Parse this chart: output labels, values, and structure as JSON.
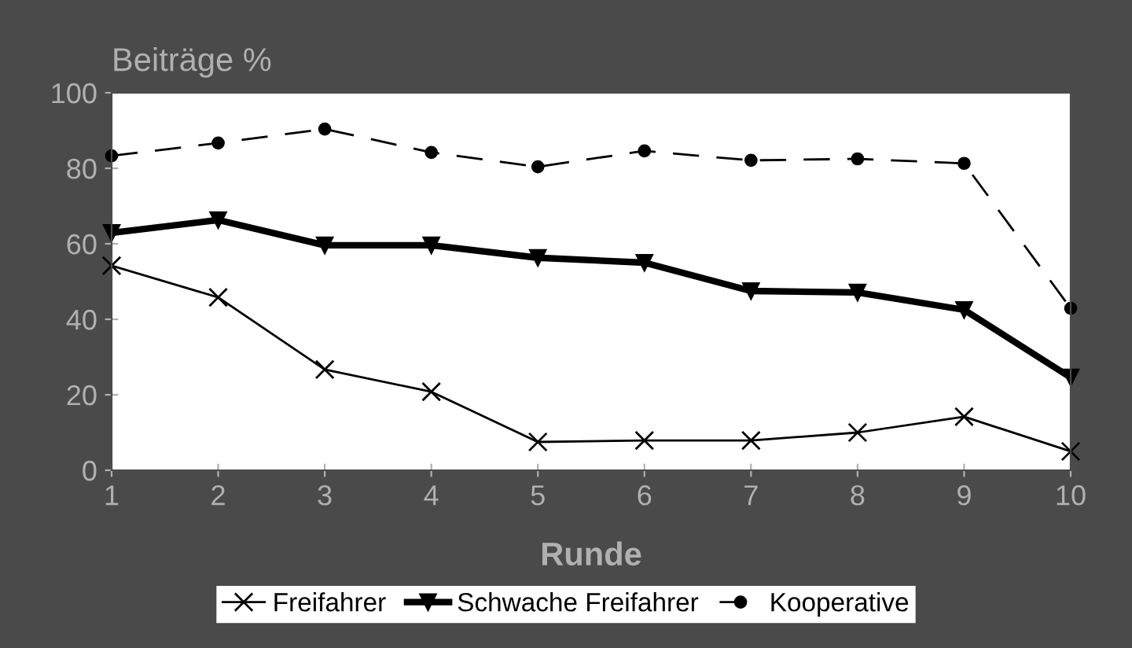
{
  "chart_data": {
    "type": "line",
    "ylabel": "Beiträge %",
    "xlabel": "Runde",
    "x": [
      1,
      2,
      3,
      4,
      5,
      6,
      7,
      8,
      9,
      10
    ],
    "series": [
      {
        "name": "Freifahrer",
        "color": "#000000",
        "marker": "cross",
        "line_style": "solid",
        "values": [
          54.2,
          45.8,
          26.7,
          20.8,
          7.5,
          7.9,
          7.9,
          10,
          14.2,
          5
        ]
      },
      {
        "name": "Schwache Freifahrer",
        "color": "#000000",
        "marker": "triangle",
        "line_style": "solid",
        "values": [
          62.9,
          66.3,
          59.6,
          59.6,
          56.3,
          55,
          47.5,
          47.1,
          42.5,
          24.6
        ]
      },
      {
        "name": "Kooperative",
        "color": "#000000",
        "marker": "circle",
        "line_style": "dashed",
        "values": [
          83.3,
          86.7,
          90.4,
          84.2,
          80.4,
          84.6,
          82.1,
          82.5,
          81.3,
          42.9
        ]
      }
    ],
    "xlim": [
      1,
      10
    ],
    "xticks": [
      1,
      2,
      3,
      4,
      5,
      6,
      7,
      8,
      9,
      10
    ],
    "ylim": [
      0,
      100
    ],
    "yticks": [
      0,
      20,
      40,
      60,
      80,
      100
    ],
    "grid": false,
    "legend": "bottom"
  }
}
